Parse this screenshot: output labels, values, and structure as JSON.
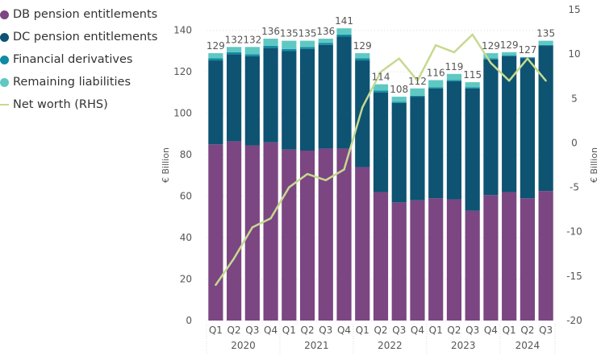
{
  "colors": {
    "db": "#7b4682",
    "dc": "#0e5372",
    "derivatives": "#0f8ba3",
    "remaining": "#5fc8c3",
    "networth": "#c6d98f",
    "gridline": "#dddddd",
    "text": "#555555"
  },
  "legend": [
    {
      "key": "db",
      "label": "DB pension entitlements",
      "shape": "dot"
    },
    {
      "key": "dc",
      "label": "DC pension entitlements",
      "shape": "dot"
    },
    {
      "key": "derivatives",
      "label": "Financial derivatives",
      "shape": "dot"
    },
    {
      "key": "remaining",
      "label": "Remaining liabilities",
      "shape": "dot"
    },
    {
      "key": "networth",
      "label": "Net worth (RHS)",
      "shape": "line"
    }
  ],
  "chart_data": {
    "type": "bar",
    "stacked": true,
    "ylabel": "€ Billion",
    "y2label": "€ Billion",
    "ylim": [
      0,
      150
    ],
    "yticks": [
      0,
      20,
      40,
      60,
      80,
      100,
      120,
      140
    ],
    "y2lim": [
      -20,
      15
    ],
    "y2ticks": [
      -20,
      -15,
      -10,
      -5,
      0,
      5,
      10,
      15
    ],
    "categories": [
      "Q1",
      "Q2",
      "Q3",
      "Q4",
      "Q1",
      "Q2",
      "Q3",
      "Q4",
      "Q1",
      "Q2",
      "Q3",
      "Q4",
      "Q1",
      "Q2",
      "Q3",
      "Q4",
      "Q1",
      "Q2",
      "Q3"
    ],
    "years": [
      {
        "label": "2020",
        "start": 0,
        "end": 3
      },
      {
        "label": "2021",
        "start": 4,
        "end": 7
      },
      {
        "label": "2022",
        "start": 8,
        "end": 11
      },
      {
        "label": "2023",
        "start": 12,
        "end": 15
      },
      {
        "label": "2024",
        "start": 16,
        "end": 18
      }
    ],
    "series": [
      {
        "name": "DB pension entitlements",
        "key": "db",
        "values": [
          85,
          86.5,
          84.5,
          86,
          82.5,
          82,
          83,
          83,
          74,
          62,
          57,
          58,
          59,
          58.5,
          53,
          60.5,
          62,
          59,
          62.5
        ]
      },
      {
        "name": "DC pension entitlements",
        "key": "dc",
        "values": [
          40.5,
          42,
          43,
          45.5,
          47.5,
          49,
          50,
          54,
          51.5,
          48,
          48,
          50,
          53,
          57,
          59,
          65.5,
          65.5,
          67.5,
          70
        ]
      },
      {
        "name": "Financial derivatives",
        "key": "derivatives",
        "values": [
          1,
          1,
          1,
          1,
          1,
          1,
          1,
          1,
          1,
          1,
          0.5,
          0.5,
          0.5,
          0.5,
          0.5,
          0.5,
          0.5,
          0.5,
          0.5
        ]
      },
      {
        "name": "Remaining liabilities",
        "key": "remaining",
        "values": [
          2.5,
          2.5,
          3.5,
          3.5,
          4,
          3,
          2,
          3,
          2.5,
          3,
          2.5,
          3.5,
          3.5,
          3,
          2.5,
          2.5,
          1.5,
          0,
          2
        ]
      }
    ],
    "totals": [
      129,
      132,
      132,
      136,
      135,
      135,
      136,
      141,
      129,
      114,
      108,
      112,
      116,
      119,
      115,
      129,
      129,
      127,
      135
    ],
    "line": {
      "name": "Net worth (RHS)",
      "key": "networth",
      "axis": "right",
      "values": [
        -16,
        -13,
        -9.5,
        -8.5,
        -5,
        -3.5,
        -4.2,
        -3,
        4,
        8,
        9.5,
        7,
        11,
        10.2,
        12.2,
        9,
        7,
        9.5,
        7
      ]
    }
  }
}
